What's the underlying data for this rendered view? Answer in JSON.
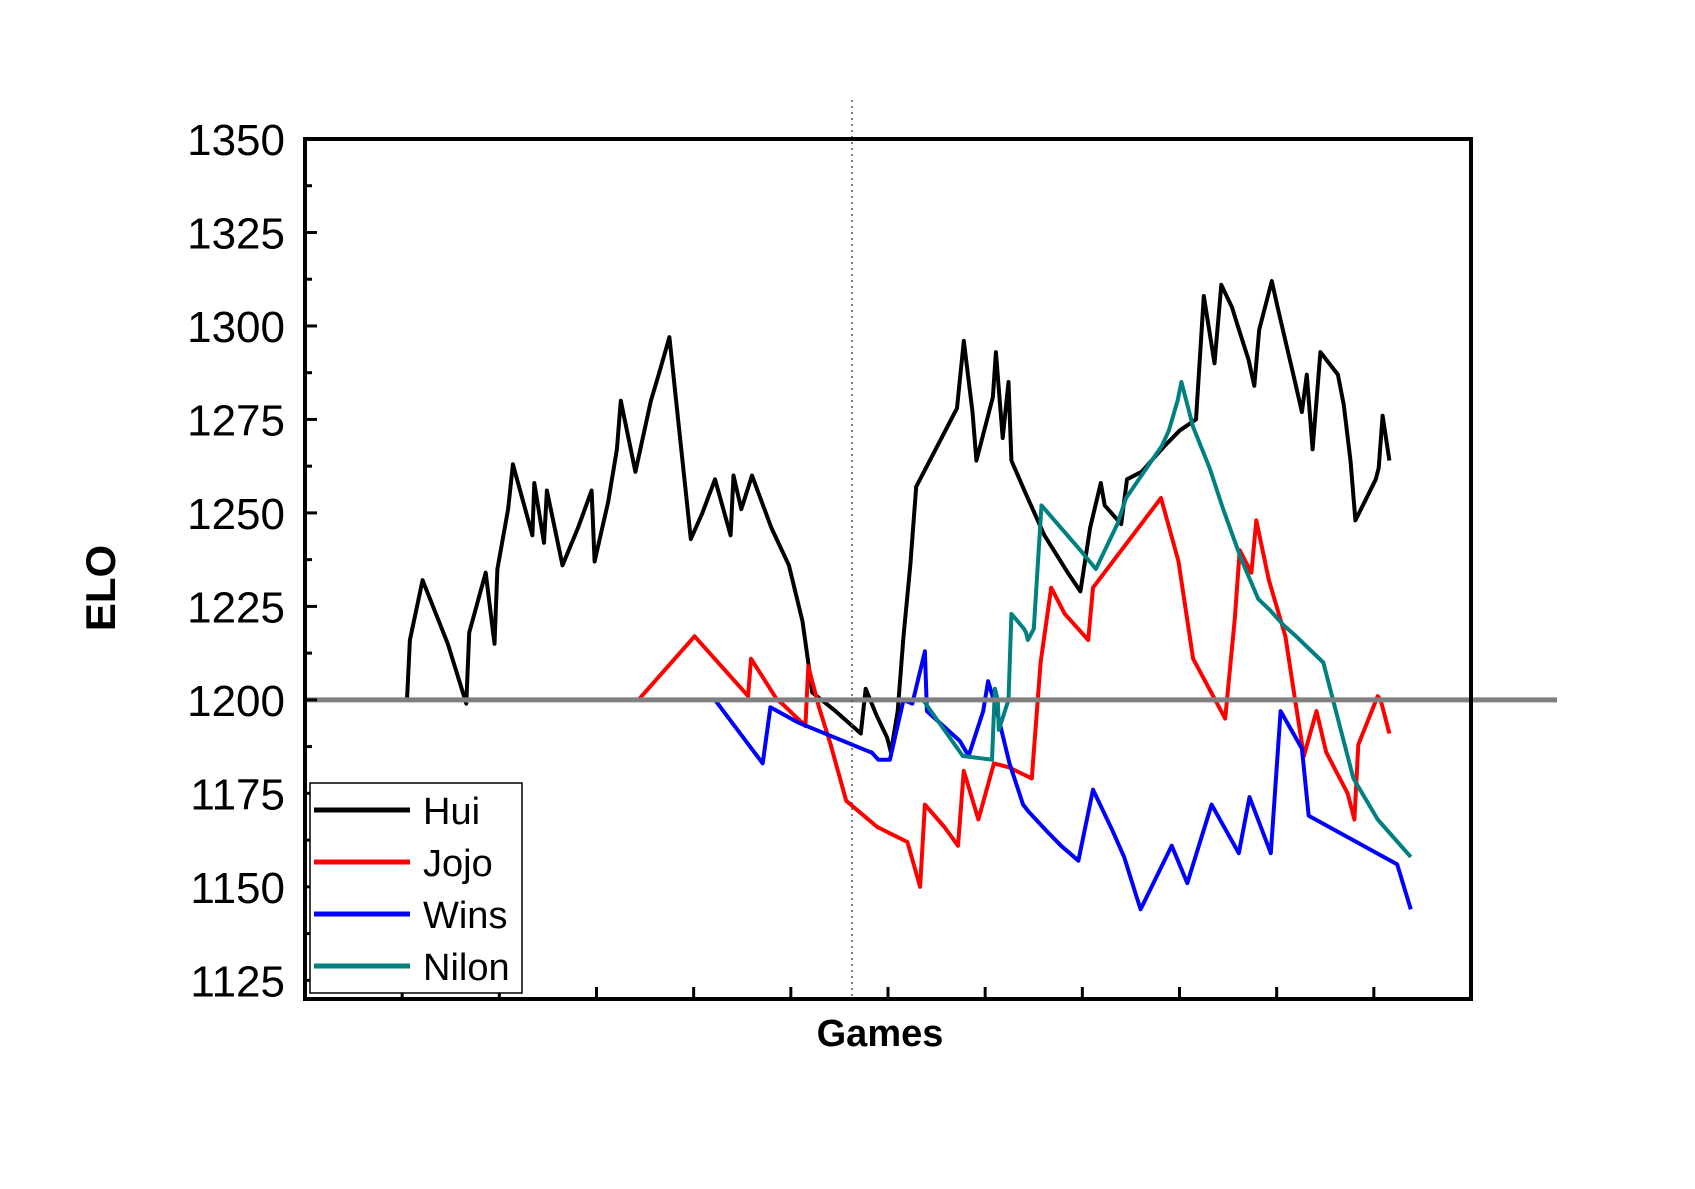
{
  "chart_data": {
    "type": "line",
    "title": "",
    "xlabel": "Games",
    "ylabel": "ELO",
    "ylim": [
      1120,
      1350
    ],
    "xlim": [
      0,
      120
    ],
    "yticks": [
      1125,
      1150,
      1175,
      1200,
      1225,
      1250,
      1275,
      1300,
      1325,
      1350
    ],
    "x_tick_labels": "none",
    "grid": false,
    "legend_position": "bottom-left",
    "reference_line": {
      "y": 1200,
      "color": "#808080"
    },
    "divider_line": {
      "x": 56.3,
      "style": "dotted"
    },
    "series": [
      {
        "name": "Hui",
        "color": "#000000",
        "points": [
          [
            10.5,
            1200
          ],
          [
            10.8,
            1216
          ],
          [
            12.1,
            1232
          ],
          [
            14.7,
            1215
          ],
          [
            16.6,
            1199
          ],
          [
            16.9,
            1218
          ],
          [
            18.6,
            1234
          ],
          [
            19.5,
            1215
          ],
          [
            19.8,
            1235
          ],
          [
            20.9,
            1251
          ],
          [
            21.4,
            1263
          ],
          [
            23.4,
            1244
          ],
          [
            23.6,
            1258
          ],
          [
            24.6,
            1242
          ],
          [
            24.9,
            1256
          ],
          [
            26.5,
            1236
          ],
          [
            28.1,
            1246
          ],
          [
            29.5,
            1256
          ],
          [
            29.8,
            1237
          ],
          [
            31.2,
            1253
          ],
          [
            32.1,
            1267
          ],
          [
            32.5,
            1280
          ],
          [
            34.0,
            1261
          ],
          [
            35.6,
            1280
          ],
          [
            36.4,
            1287
          ],
          [
            37.5,
            1297
          ],
          [
            38.4,
            1275
          ],
          [
            39.7,
            1243
          ],
          [
            40.9,
            1250
          ],
          [
            42.2,
            1259
          ],
          [
            43.8,
            1244
          ],
          [
            44.1,
            1260
          ],
          [
            44.9,
            1251
          ],
          [
            46.0,
            1260
          ],
          [
            48.0,
            1246
          ],
          [
            49.8,
            1236
          ],
          [
            51.2,
            1221
          ],
          [
            51.9,
            1208
          ],
          [
            52.2,
            1202
          ],
          [
            54.6,
            1197
          ],
          [
            57.2,
            1191
          ],
          [
            57.7,
            1203
          ],
          [
            58.8,
            1196
          ],
          [
            59.9,
            1190
          ],
          [
            60.3,
            1186
          ],
          [
            61.0,
            1197
          ],
          [
            61.6,
            1217
          ],
          [
            62.3,
            1236
          ],
          [
            62.9,
            1257
          ],
          [
            65.7,
            1271
          ],
          [
            67.1,
            1278
          ],
          [
            67.8,
            1296
          ],
          [
            68.7,
            1277
          ],
          [
            69.1,
            1264
          ],
          [
            70.8,
            1281
          ],
          [
            71.1,
            1293
          ],
          [
            71.8,
            1270
          ],
          [
            72.4,
            1285
          ],
          [
            72.7,
            1264
          ],
          [
            74.2,
            1255
          ],
          [
            76.1,
            1244
          ],
          [
            78.5,
            1234
          ],
          [
            79.8,
            1229
          ],
          [
            80.8,
            1246
          ],
          [
            81.9,
            1258
          ],
          [
            82.3,
            1252
          ],
          [
            84.0,
            1247
          ],
          [
            84.6,
            1259
          ],
          [
            86.1,
            1261
          ],
          [
            88.5,
            1268
          ],
          [
            90.0,
            1272
          ],
          [
            91.7,
            1275
          ],
          [
            92.5,
            1308
          ],
          [
            93.6,
            1290
          ],
          [
            94.3,
            1311
          ],
          [
            95.4,
            1305
          ],
          [
            96.0,
            1300
          ],
          [
            97.1,
            1291
          ],
          [
            97.7,
            1284
          ],
          [
            98.2,
            1299
          ],
          [
            99.5,
            1312
          ],
          [
            100.1,
            1305
          ],
          [
            101.8,
            1286
          ],
          [
            102.6,
            1277
          ],
          [
            103.1,
            1287
          ],
          [
            103.7,
            1267
          ],
          [
            104.5,
            1293
          ],
          [
            106.3,
            1287
          ],
          [
            106.9,
            1279
          ],
          [
            107.6,
            1264
          ],
          [
            108.1,
            1248
          ],
          [
            110.2,
            1259
          ],
          [
            110.5,
            1262
          ],
          [
            110.9,
            1276
          ],
          [
            111.6,
            1264
          ]
        ]
      },
      {
        "name": "Jojo",
        "color": "#ff0000",
        "points": [
          [
            34.3,
            1200
          ],
          [
            40.1,
            1217
          ],
          [
            45.6,
            1201
          ],
          [
            45.9,
            1211
          ],
          [
            48.6,
            1200
          ],
          [
            49.1,
            1199
          ],
          [
            51.5,
            1193
          ],
          [
            51.8,
            1209
          ],
          [
            52.9,
            1198
          ],
          [
            54.1,
            1188
          ],
          [
            55.7,
            1173
          ],
          [
            58.9,
            1166
          ],
          [
            62.0,
            1162
          ],
          [
            63.3,
            1150
          ],
          [
            63.8,
            1172
          ],
          [
            65.8,
            1166
          ],
          [
            67.2,
            1161
          ],
          [
            67.8,
            1181
          ],
          [
            69.3,
            1168
          ],
          [
            70.9,
            1183
          ],
          [
            72.4,
            1182
          ],
          [
            74.8,
            1179
          ],
          [
            75.7,
            1210
          ],
          [
            76.8,
            1230
          ],
          [
            78.2,
            1223
          ],
          [
            80.6,
            1216
          ],
          [
            81.1,
            1230
          ],
          [
            88.1,
            1254
          ],
          [
            89.9,
            1237
          ],
          [
            91.4,
            1211
          ],
          [
            94.7,
            1195
          ],
          [
            95.7,
            1222
          ],
          [
            96.2,
            1240
          ],
          [
            97.4,
            1234
          ],
          [
            97.9,
            1248
          ],
          [
            99.2,
            1232
          ],
          [
            100.9,
            1217
          ],
          [
            101.9,
            1200
          ],
          [
            102.8,
            1185
          ],
          [
            104.1,
            1197
          ],
          [
            105.1,
            1186
          ],
          [
            106.1,
            1181
          ],
          [
            107.3,
            1175
          ],
          [
            108.0,
            1168
          ],
          [
            108.4,
            1188
          ],
          [
            110.4,
            1201
          ],
          [
            110.7,
            1200
          ],
          [
            111.6,
            1191
          ]
        ]
      },
      {
        "name": "Wins",
        "color": "#0000ff",
        "points": [
          [
            42.2,
            1200
          ],
          [
            47.1,
            1183
          ],
          [
            47.9,
            1198
          ],
          [
            50.7,
            1194
          ],
          [
            58.2,
            1186
          ],
          [
            58.3,
            1186
          ],
          [
            59.0,
            1184
          ],
          [
            60.2,
            1184
          ],
          [
            61.6,
            1200
          ],
          [
            62.5,
            1199
          ],
          [
            63.8,
            1213
          ],
          [
            64.0,
            1197
          ],
          [
            67.4,
            1189
          ],
          [
            68.3,
            1185
          ],
          [
            69.8,
            1197
          ],
          [
            70.3,
            1205
          ],
          [
            71.1,
            1198
          ],
          [
            72.5,
            1183
          ],
          [
            73.9,
            1172
          ],
          [
            74.5,
            1170
          ],
          [
            76.3,
            1165
          ],
          [
            77.8,
            1161
          ],
          [
            79.6,
            1157
          ],
          [
            81.1,
            1176
          ],
          [
            83.1,
            1165
          ],
          [
            84.3,
            1158
          ],
          [
            85.5,
            1148
          ],
          [
            86.0,
            1144
          ],
          [
            89.2,
            1161
          ],
          [
            90.8,
            1151
          ],
          [
            93.3,
            1172
          ],
          [
            96.1,
            1159
          ],
          [
            97.2,
            1174
          ],
          [
            99.4,
            1159
          ],
          [
            100.4,
            1197
          ],
          [
            102.6,
            1187
          ],
          [
            103.3,
            1169
          ],
          [
            109.6,
            1160
          ],
          [
            112.4,
            1156
          ],
          [
            113.8,
            1144
          ]
        ]
      },
      {
        "name": "Nilon",
        "color": "#008080",
        "points": [
          [
            63.6,
            1200
          ],
          [
            67.7,
            1185
          ],
          [
            70.7,
            1184
          ],
          [
            71.0,
            1203
          ],
          [
            71.3,
            1200
          ],
          [
            71.4,
            1192
          ],
          [
            72.4,
            1200
          ],
          [
            72.7,
            1223
          ],
          [
            74.0,
            1219
          ],
          [
            74.2,
            1218
          ],
          [
            74.4,
            1216
          ],
          [
            75.0,
            1219
          ],
          [
            75.8,
            1252
          ],
          [
            79.8,
            1240
          ],
          [
            81.4,
            1235
          ],
          [
            83.6,
            1247
          ],
          [
            84.5,
            1254
          ],
          [
            88.2,
            1268
          ],
          [
            88.9,
            1272
          ],
          [
            89.8,
            1280
          ],
          [
            90.2,
            1285
          ],
          [
            91.4,
            1273
          ],
          [
            93.1,
            1262
          ],
          [
            94.5,
            1251
          ],
          [
            96.3,
            1238
          ],
          [
            98.1,
            1227
          ],
          [
            99.3,
            1224
          ],
          [
            100.7,
            1220
          ],
          [
            102.0,
            1217
          ],
          [
            104.8,
            1210
          ],
          [
            107.9,
            1179
          ],
          [
            110.4,
            1168
          ],
          [
            113.8,
            1158
          ]
        ]
      }
    ]
  }
}
